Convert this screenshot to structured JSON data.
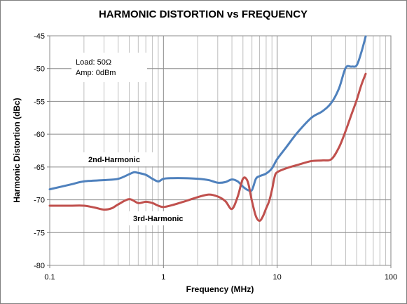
{
  "chart_data": {
    "type": "line",
    "title": "HARMONIC DISTORTION vs FREQUENCY",
    "xlabel": "Frequency (MHz)",
    "ylabel": "Harmonic Distortion (dBc)",
    "x_scale": "log",
    "xlim": [
      0.1,
      100
    ],
    "ylim": [
      -80,
      -45
    ],
    "x_ticks": [
      "0.1",
      "1",
      "10",
      "100"
    ],
    "y_ticks": [
      "-45",
      "-50",
      "-55",
      "-60",
      "-65",
      "-70",
      "-75",
      "-80"
    ],
    "grid": true,
    "notes": [
      "Load: 50Ω",
      "Amp: 0dBm"
    ],
    "series": [
      {
        "name": "2nd-Harmonic",
        "color": "#4f81bd",
        "x": [
          0.1,
          0.15,
          0.2,
          0.3,
          0.4,
          0.5,
          0.55,
          0.6,
          0.7,
          0.8,
          0.9,
          1.0,
          1.2,
          1.5,
          2.0,
          2.5,
          3.0,
          3.5,
          4.0,
          4.5,
          5.0,
          5.5,
          6.0,
          6.5,
          7.0,
          8.0,
          9.0,
          10,
          12,
          15,
          20,
          25,
          30,
          35,
          40,
          45,
          50,
          55,
          60
        ],
        "y": [
          -68.4,
          -67.7,
          -67.2,
          -67.0,
          -66.8,
          -66.1,
          -65.8,
          -65.9,
          -66.2,
          -66.8,
          -67.2,
          -66.8,
          -66.7,
          -66.7,
          -66.8,
          -67.0,
          -67.4,
          -67.3,
          -66.9,
          -67.2,
          -68.0,
          -68.5,
          -68.5,
          -66.8,
          -66.4,
          -66.0,
          -65.2,
          -63.8,
          -62.0,
          -59.8,
          -57.5,
          -56.5,
          -55.2,
          -53.0,
          -49.9,
          -49.7,
          -49.5,
          -47.5,
          -45.1
        ]
      },
      {
        "name": "3rd-Harmonic",
        "color": "#c0504d",
        "x": [
          0.1,
          0.15,
          0.2,
          0.25,
          0.3,
          0.35,
          0.4,
          0.5,
          0.6,
          0.7,
          0.8,
          0.9,
          1.0,
          1.2,
          1.5,
          2.0,
          2.5,
          3.0,
          3.5,
          4.0,
          4.5,
          5.0,
          5.5,
          6.0,
          6.5,
          7.0,
          7.5,
          8.0,
          8.5,
          9.0,
          9.5,
          10,
          12,
          15,
          20,
          25,
          30,
          35,
          40,
          45,
          50,
          55,
          60
        ],
        "y": [
          -70.9,
          -70.9,
          -70.9,
          -71.2,
          -71.5,
          -71.3,
          -70.7,
          -69.9,
          -70.5,
          -70.3,
          -70.5,
          -70.9,
          -71.1,
          -70.8,
          -70.3,
          -69.6,
          -69.2,
          -69.5,
          -70.2,
          -71.4,
          -69.5,
          -66.8,
          -67.2,
          -70.2,
          -72.5,
          -73.2,
          -72.5,
          -71.3,
          -70.2,
          -68.5,
          -66.5,
          -65.8,
          -65.2,
          -64.7,
          -64.1,
          -64.0,
          -63.8,
          -62.0,
          -59.5,
          -57.0,
          -54.8,
          -52.5,
          -50.8
        ]
      }
    ],
    "annotations": [
      "2nd-Harmonic",
      "3rd-Harmonic"
    ]
  }
}
